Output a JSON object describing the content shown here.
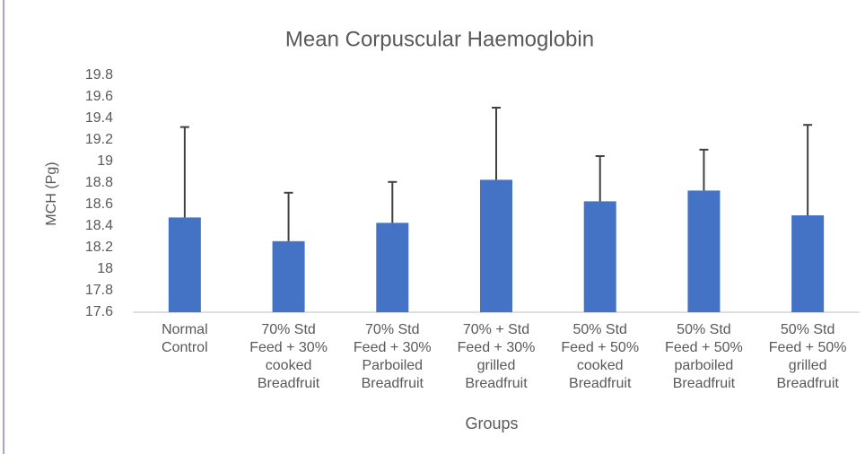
{
  "chart_data": {
    "type": "bar",
    "title": "Mean Corpuscular Haemoglobin",
    "x_label": "Groups",
    "y_label": "MCH (Pg)",
    "categories": [
      "Normal Control",
      "70% Std Feed + 30% cooked Breadfruit",
      "70% Std Feed + 30% Parboiled Breadfruit",
      "70% + Std Feed + 30% grilled Breadfruit",
      "50% Std Feed + 50% cooked Breadfruit",
      "50% Std Feed + 50% parboiled Breadfruit",
      "50% Std Feed + 50% grilled Breadfruit"
    ],
    "values": [
      18.48,
      18.26,
      18.43,
      18.83,
      18.63,
      18.73,
      18.5
    ],
    "errors": [
      0.84,
      0.45,
      0.38,
      0.67,
      0.42,
      0.38,
      0.84
    ],
    "color": "#4472c4",
    "ylim": [
      17.6,
      19.8
    ],
    "yticks": [
      17.6,
      17.8,
      18,
      18.2,
      18.4,
      18.6,
      18.8,
      19,
      19.2,
      19.4,
      19.6,
      19.8
    ],
    "grid": false
  }
}
